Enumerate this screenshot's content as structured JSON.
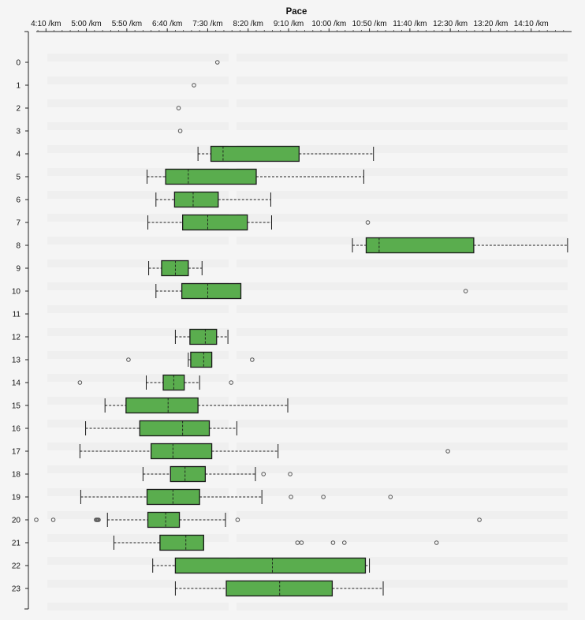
{
  "colors": {
    "background": "#f5f5f5",
    "box_fill": "#5aad4e",
    "box_stroke": "#1a1a1a",
    "whisker": "#1a1a1a",
    "outlier": "#555555"
  },
  "chart_data": {
    "type": "boxplot",
    "orientation": "horizontal",
    "title": "Pace",
    "value_unit": "seconds per km",
    "xlim": [
      238,
      900
    ],
    "x_ticks": [
      {
        "value": 250,
        "label": "4:10 /km"
      },
      {
        "value": 300,
        "label": "5:00 /km"
      },
      {
        "value": 350,
        "label": "5:50 /km"
      },
      {
        "value": 400,
        "label": "6:40 /km"
      },
      {
        "value": 450,
        "label": "7:30 /km"
      },
      {
        "value": 500,
        "label": "8:20 /km"
      },
      {
        "value": 550,
        "label": "9:10 /km"
      },
      {
        "value": 600,
        "label": "10:00 /km"
      },
      {
        "value": 650,
        "label": "10:50 /km"
      },
      {
        "value": 700,
        "label": "11:40 /km"
      },
      {
        "value": 750,
        "label": "12:30 /km"
      },
      {
        "value": 800,
        "label": "13:20 /km"
      },
      {
        "value": 850,
        "label": "14:10 /km"
      }
    ],
    "axis_position": "top",
    "grid": false,
    "categories": [
      "0",
      "1",
      "2",
      "3",
      "4",
      "5",
      "6",
      "7",
      "8",
      "9",
      "10",
      "11",
      "12",
      "13",
      "14",
      "15",
      "16",
      "17",
      "18",
      "19",
      "20",
      "21",
      "22",
      "23"
    ],
    "boxes": [
      {
        "label": "0",
        "box": null,
        "outliers": [
          462
        ]
      },
      {
        "label": "1",
        "box": null,
        "outliers": [
          433
        ]
      },
      {
        "label": "2",
        "box": null,
        "outliers": [
          414
        ]
      },
      {
        "label": "3",
        "box": null,
        "outliers": [
          416
        ]
      },
      {
        "label": "4",
        "box": {
          "whislo": 438,
          "q1": 454,
          "med": 469,
          "q3": 563,
          "whishi": 655
        },
        "outliers": []
      },
      {
        "label": "5",
        "box": {
          "whislo": 375,
          "q1": 398,
          "med": 426,
          "q3": 510,
          "whishi": 643
        },
        "outliers": []
      },
      {
        "label": "6",
        "box": {
          "whislo": 386,
          "q1": 409,
          "med": 432,
          "q3": 463,
          "whishi": 528
        },
        "outliers": []
      },
      {
        "label": "7",
        "box": {
          "whislo": 376,
          "q1": 419,
          "med": 450,
          "q3": 499,
          "whishi": 529
        },
        "outliers": [
          648
        ]
      },
      {
        "label": "8",
        "box": {
          "whislo": 629,
          "q1": 646,
          "med": 662,
          "q3": 779,
          "whishi": 895
        },
        "outliers": []
      },
      {
        "label": "9",
        "box": {
          "whislo": 377,
          "q1": 393,
          "med": 410,
          "q3": 426,
          "whishi": 443
        },
        "outliers": []
      },
      {
        "label": "10",
        "box": {
          "whislo": 386,
          "q1": 418,
          "med": 450,
          "q3": 491,
          "whishi": 491
        },
        "outliers": [
          769
        ]
      },
      {
        "label": "11",
        "box": null,
        "outliers": []
      },
      {
        "label": "12",
        "box": {
          "whislo": 410,
          "q1": 428,
          "med": 447,
          "q3": 461,
          "whishi": 475
        },
        "outliers": []
      },
      {
        "label": "13",
        "box": {
          "whislo": 426,
          "q1": 429,
          "med": 445,
          "q3": 455,
          "whishi": 455
        },
        "outliers": [
          352,
          505
        ]
      },
      {
        "label": "14",
        "box": {
          "whislo": 374,
          "q1": 395,
          "med": 408,
          "q3": 421,
          "whishi": 440
        },
        "outliers": [
          292,
          479
        ]
      },
      {
        "label": "15",
        "box": {
          "whislo": 323,
          "q1": 349,
          "med": 401,
          "q3": 438,
          "whishi": 549
        },
        "outliers": []
      },
      {
        "label": "16",
        "box": {
          "whislo": 299,
          "q1": 366,
          "med": 419,
          "q3": 452,
          "whishi": 486
        },
        "outliers": []
      },
      {
        "label": "17",
        "box": {
          "whislo": 292,
          "q1": 380,
          "med": 407,
          "q3": 455,
          "whishi": 537
        },
        "outliers": [
          747
        ]
      },
      {
        "label": "18",
        "box": {
          "whislo": 370,
          "q1": 404,
          "med": 422,
          "q3": 447,
          "whishi": 509
        },
        "outliers": [
          519,
          552
        ]
      },
      {
        "label": "19",
        "box": {
          "whislo": 293,
          "q1": 375,
          "med": 407,
          "q3": 440,
          "whishi": 517
        },
        "outliers": [
          553,
          593,
          676
        ]
      },
      {
        "label": "20",
        "box": {
          "whislo": 326,
          "q1": 376,
          "med": 398,
          "q3": 415,
          "whishi": 472
        },
        "outliers": [
          238,
          259,
          312,
          313,
          314,
          315,
          487,
          786
        ]
      },
      {
        "label": "21",
        "box": {
          "whislo": 334,
          "q1": 391,
          "med": 423,
          "q3": 445,
          "whishi": 445
        },
        "outliers": [
          561,
          566,
          605,
          619,
          733
        ]
      },
      {
        "label": "22",
        "box": {
          "whislo": 382,
          "q1": 410,
          "med": 530,
          "q3": 645,
          "whishi": 650
        },
        "outliers": []
      },
      {
        "label": "23",
        "box": {
          "whislo": 410,
          "q1": 473,
          "med": 539,
          "q3": 604,
          "whishi": 667
        },
        "outliers": []
      }
    ]
  }
}
